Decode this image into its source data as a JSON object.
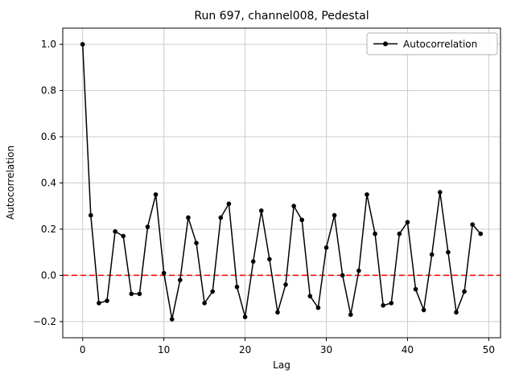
{
  "figure": {
    "title": "Run 697, channel008, Pedestal",
    "xlabel": "Lag",
    "ylabel": "Autocorrelation",
    "legend": {
      "label": "Autocorrelation"
    }
  },
  "chart_data": {
    "type": "line",
    "title": "Run 697, channel008, Pedestal",
    "xlabel": "Lag",
    "ylabel": "Autocorrelation",
    "series": [
      {
        "name": "Autocorrelation",
        "x": [
          0,
          1,
          2,
          3,
          4,
          5,
          6,
          7,
          8,
          9,
          10,
          11,
          12,
          13,
          14,
          15,
          16,
          17,
          18,
          19,
          20,
          21,
          22,
          23,
          24,
          25,
          26,
          27,
          28,
          29,
          30,
          31,
          32,
          33,
          34,
          35,
          36,
          37,
          38,
          39,
          40,
          41,
          42,
          43,
          44,
          45,
          46,
          47,
          48,
          49
        ],
        "y": [
          1.0,
          0.26,
          -0.12,
          -0.11,
          0.19,
          0.17,
          -0.08,
          -0.08,
          0.21,
          0.35,
          0.01,
          -0.19,
          -0.02,
          0.25,
          0.14,
          -0.12,
          -0.07,
          0.25,
          0.31,
          -0.05,
          -0.18,
          0.06,
          0.28,
          0.07,
          -0.16,
          -0.04,
          0.3,
          0.24,
          -0.09,
          -0.14,
          0.12,
          0.26,
          0.0,
          -0.17,
          0.02,
          0.35,
          0.18,
          -0.13,
          -0.12,
          0.18,
          0.23,
          -0.06,
          -0.15,
          0.09,
          0.36,
          0.1,
          -0.16,
          -0.07,
          0.22,
          0.18
        ],
        "line_color": "#000000",
        "marker": "circle"
      }
    ],
    "reference_lines": [
      {
        "y": 0.0,
        "color": "#ff0000",
        "style": "dashed"
      }
    ],
    "xlim": [
      -2.45,
      51.45
    ],
    "ylim": [
      -0.27,
      1.07
    ],
    "xticks": [
      0,
      10,
      20,
      30,
      40,
      50
    ],
    "yticks": [
      -0.2,
      0.0,
      0.2,
      0.4,
      0.6,
      0.8,
      1.0
    ],
    "grid": true,
    "legend_position": "upper right"
  }
}
